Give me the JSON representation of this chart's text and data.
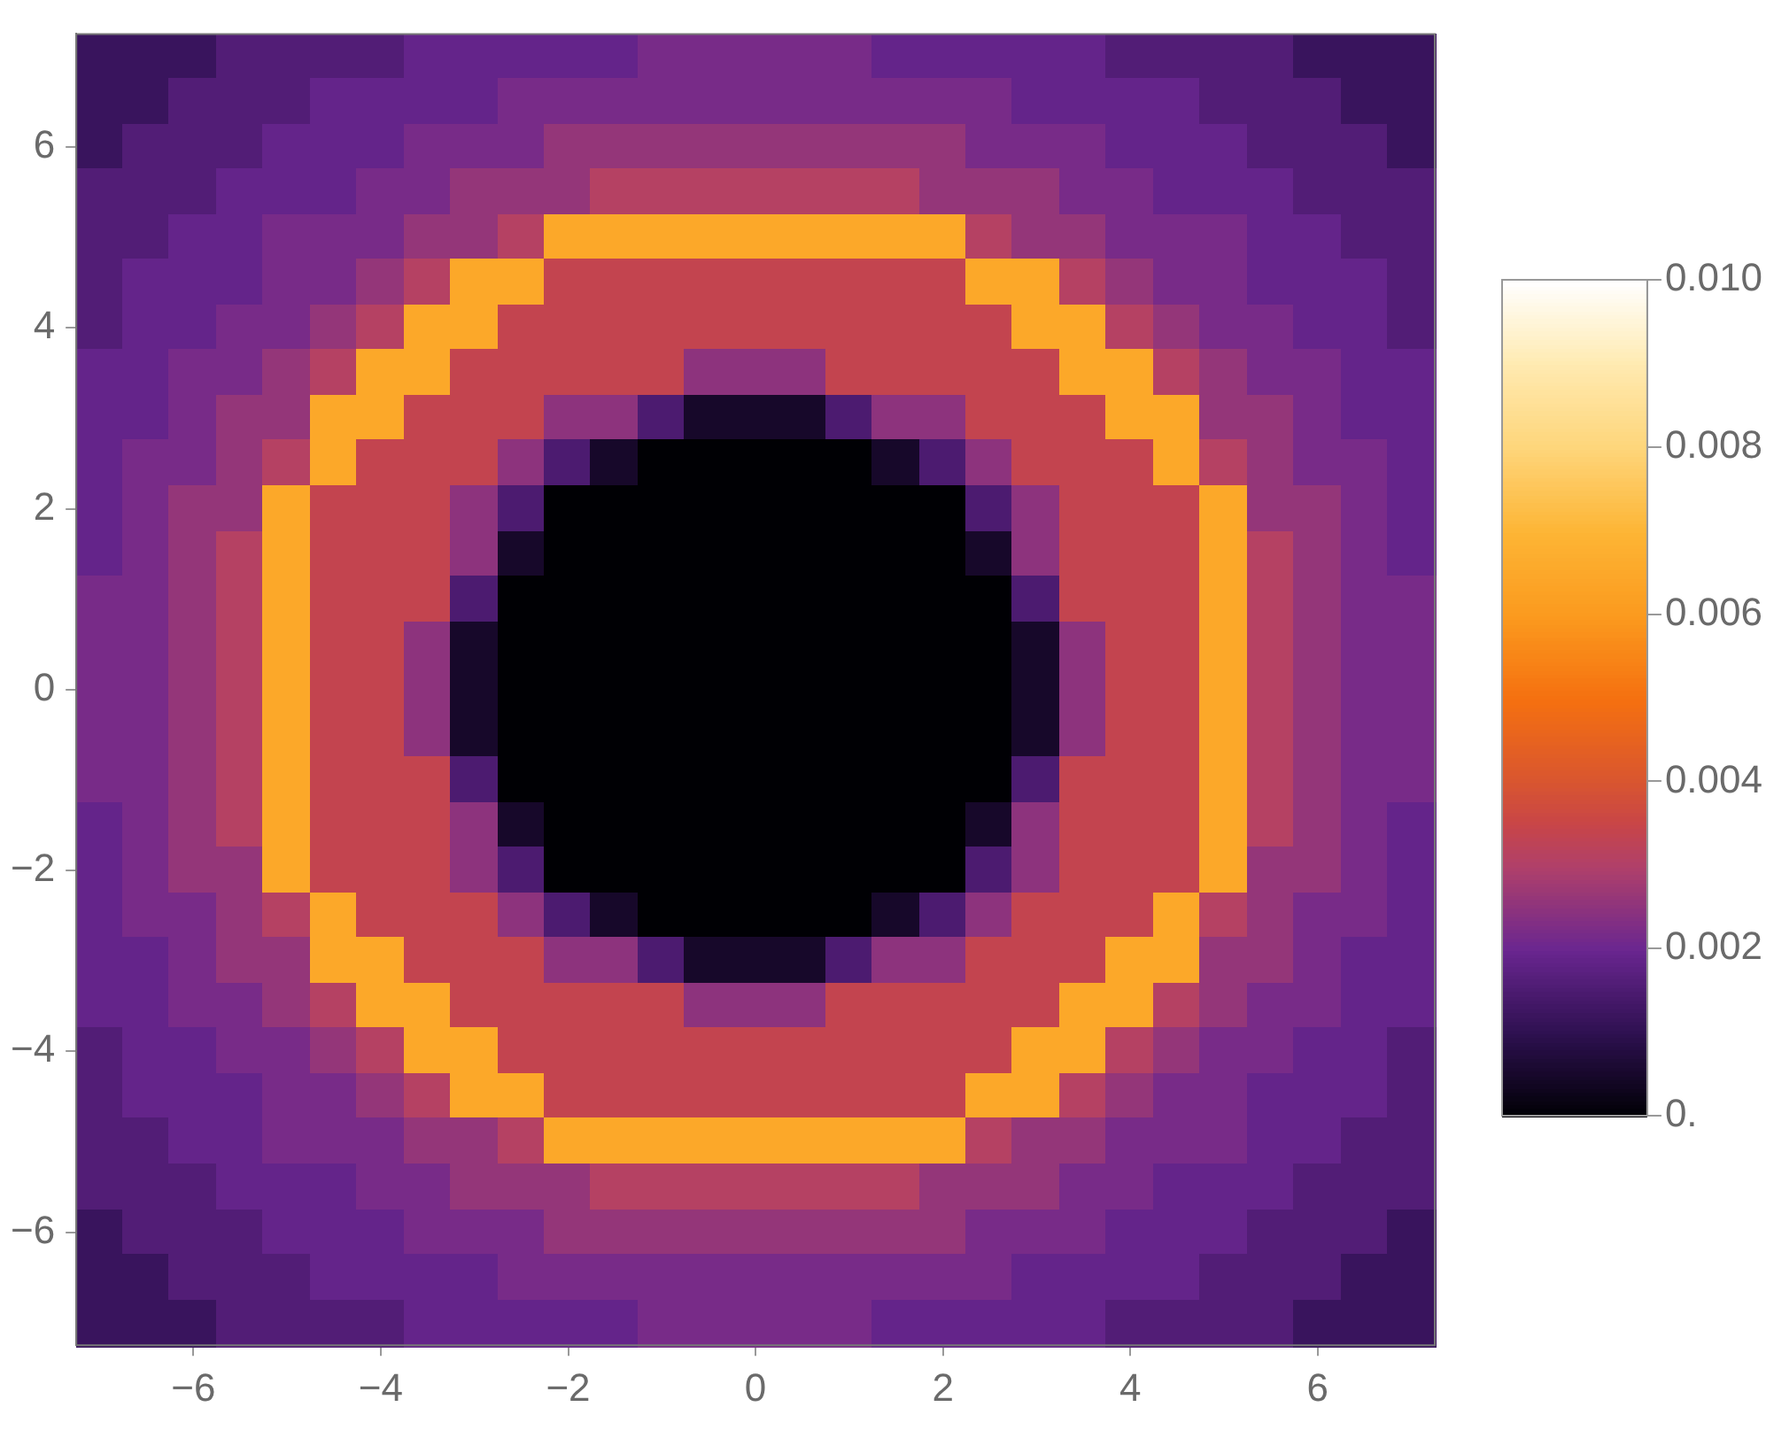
{
  "chart_data": {
    "type": "heatmap",
    "xlim": [
      -7.25,
      7.25
    ],
    "ylim": [
      -7.25,
      7.25
    ],
    "xticks": [
      {
        "value": -6,
        "label": "−6"
      },
      {
        "value": -4,
        "label": "−4"
      },
      {
        "value": -2,
        "label": "−2"
      },
      0,
      2,
      4,
      6
    ],
    "yticks": [
      {
        "value": -6,
        "label": "−6"
      },
      {
        "value": -4,
        "label": "−4"
      },
      {
        "value": -2,
        "label": "−2"
      },
      0,
      2,
      4,
      6
    ],
    "clim": [
      0,
      0.01
    ],
    "cticks": [
      {
        "value": 0,
        "label": "0."
      },
      0.002,
      0.004,
      0.006,
      0.008,
      {
        "value": 0.01,
        "label": "0.010"
      }
    ],
    "cells": [
      [
        0.0012,
        0.0012,
        0.0012,
        0.0016,
        0.0016,
        0.0016,
        0.0016,
        0.0019,
        0.0019,
        0.0019,
        0.0019,
        0.0019,
        0.0022,
        0.0022,
        0.0022,
        0.0022,
        0.0022,
        0.0019,
        0.0019,
        0.0019,
        0.0019,
        0.0019,
        0.0016,
        0.0016,
        0.0016,
        0.0016,
        0.0012,
        0.0012,
        0.0012
      ],
      [
        0.0012,
        0.0012,
        0.0016,
        0.0016,
        0.0016,
        0.0019,
        0.0019,
        0.0019,
        0.0019,
        0.0022,
        0.0022,
        0.0022,
        0.0022,
        0.0022,
        0.0022,
        0.0022,
        0.0022,
        0.0022,
        0.0022,
        0.0022,
        0.0019,
        0.0019,
        0.0019,
        0.0019,
        0.0016,
        0.0016,
        0.0016,
        0.0012,
        0.0012
      ],
      [
        0.0012,
        0.0016,
        0.0016,
        0.0016,
        0.0019,
        0.0019,
        0.0019,
        0.0022,
        0.0022,
        0.0022,
        0.0026,
        0.0026,
        0.0026,
        0.0026,
        0.0026,
        0.0026,
        0.0026,
        0.0026,
        0.0026,
        0.0022,
        0.0022,
        0.0022,
        0.0019,
        0.0019,
        0.0019,
        0.0016,
        0.0016,
        0.0016,
        0.0012
      ],
      [
        0.0016,
        0.0016,
        0.0016,
        0.0019,
        0.0019,
        0.0019,
        0.0022,
        0.0022,
        0.0026,
        0.0026,
        0.0026,
        0.0031,
        0.0031,
        0.0031,
        0.0031,
        0.0031,
        0.0031,
        0.0031,
        0.0026,
        0.0026,
        0.0026,
        0.0022,
        0.0022,
        0.0019,
        0.0019,
        0.0019,
        0.0016,
        0.0016,
        0.0016
      ],
      [
        0.0016,
        0.0016,
        0.0019,
        0.0019,
        0.0022,
        0.0022,
        0.0022,
        0.0026,
        0.0026,
        0.0031,
        0.0065,
        0.0065,
        0.0065,
        0.0065,
        0.0065,
        0.0065,
        0.0065,
        0.0065,
        0.0065,
        0.0031,
        0.0026,
        0.0026,
        0.0022,
        0.0022,
        0.0022,
        0.0019,
        0.0019,
        0.0016,
        0.0016
      ],
      [
        0.0016,
        0.0019,
        0.0019,
        0.0019,
        0.0022,
        0.0022,
        0.0026,
        0.0031,
        0.0065,
        0.0065,
        0.0034,
        0.0034,
        0.0034,
        0.0034,
        0.0034,
        0.0034,
        0.0034,
        0.0034,
        0.0034,
        0.0065,
        0.0065,
        0.0031,
        0.0026,
        0.0022,
        0.0022,
        0.0019,
        0.0019,
        0.0019,
        0.0016
      ],
      [
        0.0016,
        0.0019,
        0.0019,
        0.0022,
        0.0022,
        0.0026,
        0.0031,
        0.0065,
        0.0065,
        0.0034,
        0.0034,
        0.0034,
        0.0034,
        0.0034,
        0.0034,
        0.0034,
        0.0034,
        0.0034,
        0.0034,
        0.0034,
        0.0065,
        0.0065,
        0.0031,
        0.0026,
        0.0022,
        0.0022,
        0.0019,
        0.0019,
        0.0016
      ],
      [
        0.0019,
        0.0019,
        0.0022,
        0.0022,
        0.0026,
        0.0031,
        0.0065,
        0.0065,
        0.0034,
        0.0034,
        0.0034,
        0.0034,
        0.0034,
        0.0025,
        0.0025,
        0.0025,
        0.0034,
        0.0034,
        0.0034,
        0.0034,
        0.0034,
        0.0065,
        0.0065,
        0.0031,
        0.0026,
        0.0022,
        0.0022,
        0.0019,
        0.0019
      ],
      [
        0.0019,
        0.0019,
        0.0022,
        0.0026,
        0.0026,
        0.0065,
        0.0065,
        0.0034,
        0.0034,
        0.0034,
        0.0025,
        0.0025,
        0.0015,
        0.0005,
        0.0005,
        0.0005,
        0.0015,
        0.0025,
        0.0025,
        0.0034,
        0.0034,
        0.0034,
        0.0065,
        0.0065,
        0.0026,
        0.0026,
        0.0022,
        0.0019,
        0.0019
      ],
      [
        0.0019,
        0.0022,
        0.0022,
        0.0026,
        0.0031,
        0.0065,
        0.0034,
        0.0034,
        0.0034,
        0.0025,
        0.0015,
        0.0005,
        0,
        0,
        0,
        0,
        0,
        0.0005,
        0.0015,
        0.0025,
        0.0034,
        0.0034,
        0.0034,
        0.0065,
        0.0031,
        0.0026,
        0.0022,
        0.0022,
        0.0019
      ],
      [
        0.0019,
        0.0022,
        0.0026,
        0.0026,
        0.0065,
        0.0034,
        0.0034,
        0.0034,
        0.0025,
        0.0015,
        0,
        0,
        0,
        0,
        0,
        0,
        0,
        0,
        0,
        0.0015,
        0.0025,
        0.0034,
        0.0034,
        0.0034,
        0.0065,
        0.0026,
        0.0026,
        0.0022,
        0.0019
      ],
      [
        0.0019,
        0.0022,
        0.0026,
        0.0031,
        0.0065,
        0.0034,
        0.0034,
        0.0034,
        0.0025,
        0.0005,
        0,
        0,
        0,
        0,
        0,
        0,
        0,
        0,
        0,
        0.0005,
        0.0025,
        0.0034,
        0.0034,
        0.0034,
        0.0065,
        0.0031,
        0.0026,
        0.0022,
        0.0019
      ],
      [
        0.0022,
        0.0022,
        0.0026,
        0.0031,
        0.0065,
        0.0034,
        0.0034,
        0.0034,
        0.0015,
        0,
        0,
        0,
        0,
        0,
        0,
        0,
        0,
        0,
        0,
        0,
        0.0015,
        0.0034,
        0.0034,
        0.0034,
        0.0065,
        0.0031,
        0.0026,
        0.0022,
        0.0022
      ],
      [
        0.0022,
        0.0022,
        0.0026,
        0.0031,
        0.0065,
        0.0034,
        0.0034,
        0.0025,
        0.0005,
        0,
        0,
        0,
        0,
        0,
        0,
        0,
        0,
        0,
        0,
        0,
        0.0005,
        0.0025,
        0.0034,
        0.0034,
        0.0065,
        0.0031,
        0.0026,
        0.0022,
        0.0022
      ],
      [
        0.0022,
        0.0022,
        0.0026,
        0.0031,
        0.0065,
        0.0034,
        0.0034,
        0.0025,
        0.0005,
        0,
        0,
        0,
        0,
        0,
        0,
        0,
        0,
        0,
        0,
        0,
        0.0005,
        0.0025,
        0.0034,
        0.0034,
        0.0065,
        0.0031,
        0.0026,
        0.0022,
        0.0022
      ],
      [
        0.0022,
        0.0022,
        0.0026,
        0.0031,
        0.0065,
        0.0034,
        0.0034,
        0.0025,
        0.0005,
        0,
        0,
        0,
        0,
        0,
        0,
        0,
        0,
        0,
        0,
        0,
        0.0005,
        0.0025,
        0.0034,
        0.0034,
        0.0065,
        0.0031,
        0.0026,
        0.0022,
        0.0022
      ],
      [
        0.0022,
        0.0022,
        0.0026,
        0.0031,
        0.0065,
        0.0034,
        0.0034,
        0.0034,
        0.0015,
        0,
        0,
        0,
        0,
        0,
        0,
        0,
        0,
        0,
        0,
        0,
        0.0015,
        0.0034,
        0.0034,
        0.0034,
        0.0065,
        0.0031,
        0.0026,
        0.0022,
        0.0022
      ],
      [
        0.0019,
        0.0022,
        0.0026,
        0.0031,
        0.0065,
        0.0034,
        0.0034,
        0.0034,
        0.0025,
        0.0005,
        0,
        0,
        0,
        0,
        0,
        0,
        0,
        0,
        0,
        0.0005,
        0.0025,
        0.0034,
        0.0034,
        0.0034,
        0.0065,
        0.0031,
        0.0026,
        0.0022,
        0.0019
      ],
      [
        0.0019,
        0.0022,
        0.0026,
        0.0026,
        0.0065,
        0.0034,
        0.0034,
        0.0034,
        0.0025,
        0.0015,
        0,
        0,
        0,
        0,
        0,
        0,
        0,
        0,
        0,
        0.0015,
        0.0025,
        0.0034,
        0.0034,
        0.0034,
        0.0065,
        0.0026,
        0.0026,
        0.0022,
        0.0019
      ],
      [
        0.0019,
        0.0022,
        0.0022,
        0.0026,
        0.0031,
        0.0065,
        0.0034,
        0.0034,
        0.0034,
        0.0025,
        0.0015,
        0.0005,
        0,
        0,
        0,
        0,
        0,
        0.0005,
        0.0015,
        0.0025,
        0.0034,
        0.0034,
        0.0034,
        0.0065,
        0.0031,
        0.0026,
        0.0022,
        0.0022,
        0.0019
      ],
      [
        0.0019,
        0.0019,
        0.0022,
        0.0026,
        0.0026,
        0.0065,
        0.0065,
        0.0034,
        0.0034,
        0.0034,
        0.0025,
        0.0025,
        0.0015,
        0.0005,
        0.0005,
        0.0005,
        0.0015,
        0.0025,
        0.0025,
        0.0034,
        0.0034,
        0.0034,
        0.0065,
        0.0065,
        0.0026,
        0.0026,
        0.0022,
        0.0019,
        0.0019
      ],
      [
        0.0019,
        0.0019,
        0.0022,
        0.0022,
        0.0026,
        0.0031,
        0.0065,
        0.0065,
        0.0034,
        0.0034,
        0.0034,
        0.0034,
        0.0034,
        0.0025,
        0.0025,
        0.0025,
        0.0034,
        0.0034,
        0.0034,
        0.0034,
        0.0034,
        0.0065,
        0.0065,
        0.0031,
        0.0026,
        0.0022,
        0.0022,
        0.0019,
        0.0019
      ],
      [
        0.0016,
        0.0019,
        0.0019,
        0.0022,
        0.0022,
        0.0026,
        0.0031,
        0.0065,
        0.0065,
        0.0034,
        0.0034,
        0.0034,
        0.0034,
        0.0034,
        0.0034,
        0.0034,
        0.0034,
        0.0034,
        0.0034,
        0.0034,
        0.0065,
        0.0065,
        0.0031,
        0.0026,
        0.0022,
        0.0022,
        0.0019,
        0.0019,
        0.0016
      ],
      [
        0.0016,
        0.0019,
        0.0019,
        0.0019,
        0.0022,
        0.0022,
        0.0026,
        0.0031,
        0.0065,
        0.0065,
        0.0034,
        0.0034,
        0.0034,
        0.0034,
        0.0034,
        0.0034,
        0.0034,
        0.0034,
        0.0034,
        0.0065,
        0.0065,
        0.0031,
        0.0026,
        0.0022,
        0.0022,
        0.0019,
        0.0019,
        0.0019,
        0.0016
      ],
      [
        0.0016,
        0.0016,
        0.0019,
        0.0019,
        0.0022,
        0.0022,
        0.0022,
        0.0026,
        0.0026,
        0.0031,
        0.0065,
        0.0065,
        0.0065,
        0.0065,
        0.0065,
        0.0065,
        0.0065,
        0.0065,
        0.0065,
        0.0031,
        0.0026,
        0.0026,
        0.0022,
        0.0022,
        0.0022,
        0.0019,
        0.0019,
        0.0016,
        0.0016
      ],
      [
        0.0016,
        0.0016,
        0.0016,
        0.0019,
        0.0019,
        0.0019,
        0.0022,
        0.0022,
        0.0026,
        0.0026,
        0.0026,
        0.0031,
        0.0031,
        0.0031,
        0.0031,
        0.0031,
        0.0031,
        0.0031,
        0.0026,
        0.0026,
        0.0026,
        0.0022,
        0.0022,
        0.0019,
        0.0019,
        0.0019,
        0.0016,
        0.0016,
        0.0016
      ],
      [
        0.0012,
        0.0016,
        0.0016,
        0.0016,
        0.0019,
        0.0019,
        0.0019,
        0.0022,
        0.0022,
        0.0022,
        0.0026,
        0.0026,
        0.0026,
        0.0026,
        0.0026,
        0.0026,
        0.0026,
        0.0026,
        0.0026,
        0.0022,
        0.0022,
        0.0022,
        0.0019,
        0.0019,
        0.0019,
        0.0016,
        0.0016,
        0.0016,
        0.0012
      ],
      [
        0.0012,
        0.0012,
        0.0016,
        0.0016,
        0.0016,
        0.0019,
        0.0019,
        0.0019,
        0.0019,
        0.0022,
        0.0022,
        0.0022,
        0.0022,
        0.0022,
        0.0022,
        0.0022,
        0.0022,
        0.0022,
        0.0022,
        0.0022,
        0.0019,
        0.0019,
        0.0019,
        0.0019,
        0.0016,
        0.0016,
        0.0016,
        0.0012,
        0.0012
      ],
      [
        0.0012,
        0.0012,
        0.0012,
        0.0016,
        0.0016,
        0.0016,
        0.0016,
        0.0019,
        0.0019,
        0.0019,
        0.0019,
        0.0019,
        0.0022,
        0.0022,
        0.0022,
        0.0022,
        0.0022,
        0.0019,
        0.0019,
        0.0019,
        0.0019,
        0.0019,
        0.0016,
        0.0016,
        0.0016,
        0.0016,
        0.0012,
        0.0012,
        0.0012
      ]
    ]
  }
}
